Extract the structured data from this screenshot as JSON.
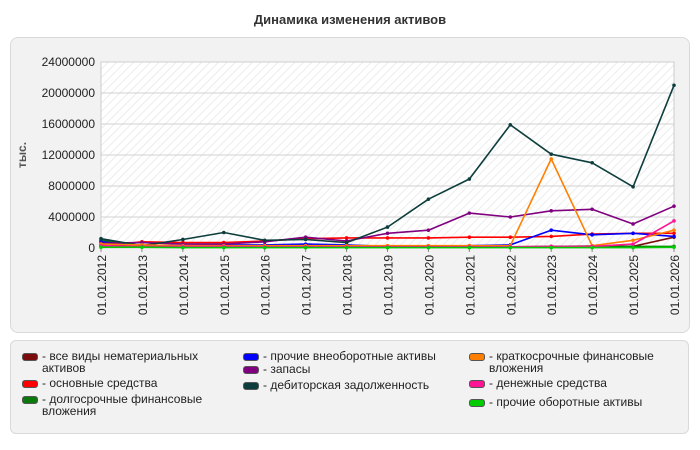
{
  "title": "Динамика изменения активов",
  "chart_data": {
    "type": "line",
    "ylabel": "тыс.",
    "ylim": [
      0,
      24000000
    ],
    "yticks": [
      0,
      4000000,
      8000000,
      12000000,
      16000000,
      20000000,
      24000000
    ],
    "grid": "hatched background, horizontal gridlines",
    "x": [
      "01.01.2012",
      "01.01.2013",
      "01.01.2014",
      "01.01.2015",
      "01.01.2016",
      "01.01.2017",
      "01.01.2018",
      "01.01.2019",
      "01.01.2020",
      "01.01.2021",
      "01.01.2022",
      "01.01.2023",
      "01.01.2024",
      "01.01.2025",
      "01.01.2026"
    ],
    "series": [
      {
        "name": "все виды нематериальных активов",
        "color": "#7a0c0c",
        "values": [
          400000,
          300000,
          250000,
          200000,
          150000,
          150000,
          150000,
          150000,
          150000,
          150000,
          150000,
          200000,
          250000,
          200000,
          1400000
        ]
      },
      {
        "name": "основные средства",
        "color": "#ff0000",
        "values": [
          200000,
          800000,
          700000,
          700000,
          900000,
          1200000,
          1300000,
          1300000,
          1300000,
          1400000,
          1400000,
          1500000,
          1800000,
          1900000,
          1900000
        ]
      },
      {
        "name": "долгосрочные финансовые вложения",
        "color": "#0b7a0b",
        "values": [
          1000000,
          300000,
          300000,
          300000,
          300000,
          300000,
          300000,
          100000,
          100000,
          100000,
          100000,
          200000,
          200000,
          200000,
          200000
        ]
      },
      {
        "name": "прочие внеоборотные активы",
        "color": "#0000ff",
        "values": [
          800000,
          300000,
          300000,
          400000,
          400000,
          500000,
          400000,
          200000,
          200000,
          300000,
          400000,
          2300000,
          1700000,
          1900000,
          1500000
        ]
      },
      {
        "name": "запасы",
        "color": "#800080",
        "values": [
          600000,
          700000,
          500000,
          500000,
          800000,
          1400000,
          900000,
          1900000,
          2300000,
          4500000,
          4000000,
          4800000,
          5000000,
          3100000,
          5400000
        ]
      },
      {
        "name": "дебиторская задолженность",
        "color": "#0d3d3d",
        "values": [
          1200000,
          300000,
          1100000,
          2000000,
          1000000,
          1100000,
          700000,
          2700000,
          6300000,
          8900000,
          15900000,
          12100000,
          11000000,
          7900000,
          21000000
        ]
      },
      {
        "name": "краткосрочные финансовые вложения",
        "color": "#ff8000",
        "values": [
          500000,
          400000,
          300000,
          300000,
          300000,
          300000,
          300000,
          300000,
          300000,
          300000,
          300000,
          11500000,
          300000,
          1000000,
          2300000
        ]
      },
      {
        "name": "денежные средства",
        "color": "#ff1493",
        "values": [
          300000,
          200000,
          200000,
          200000,
          150000,
          150000,
          150000,
          150000,
          150000,
          150000,
          150000,
          200000,
          200000,
          500000,
          3500000
        ]
      },
      {
        "name": "прочие оборотные активы",
        "color": "#00cc00",
        "values": [
          100000,
          100000,
          50000,
          50000,
          50000,
          50000,
          50000,
          50000,
          50000,
          50000,
          50000,
          50000,
          50000,
          50000,
          100000
        ]
      }
    ]
  }
}
